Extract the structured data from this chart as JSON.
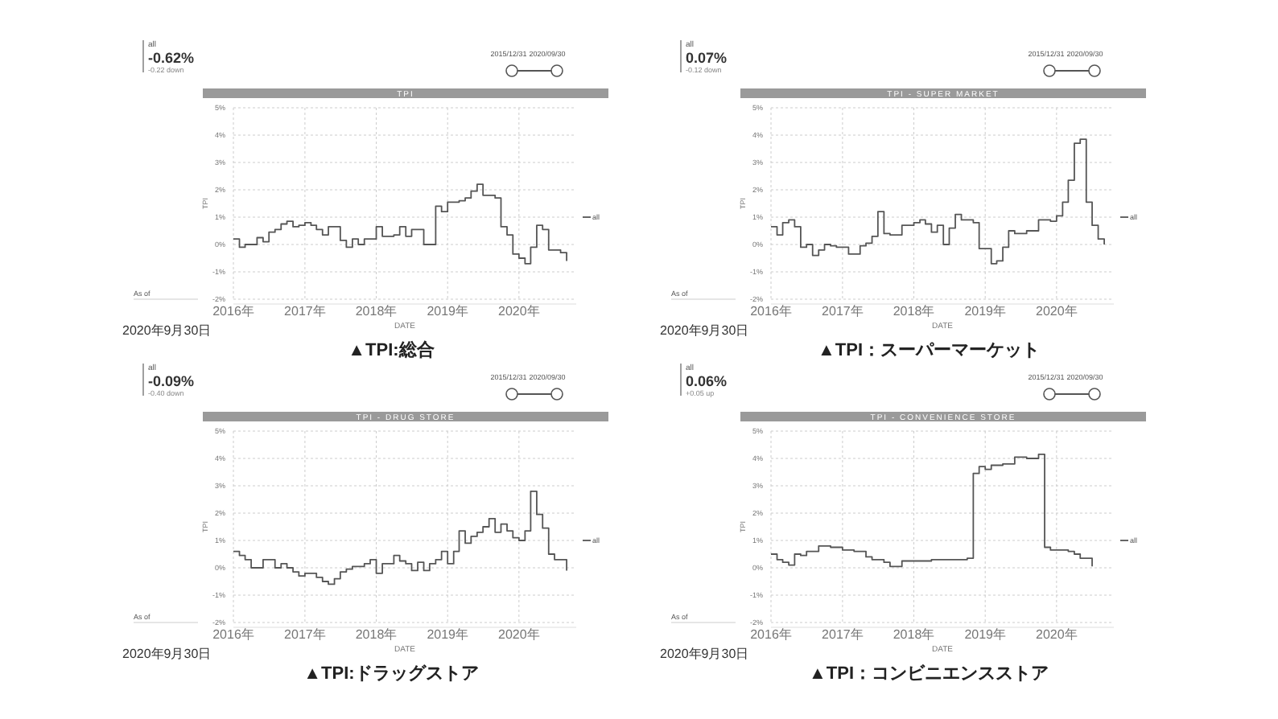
{
  "chart_data": [
    {
      "type": "step",
      "title": "TPI",
      "xlabel": "DATE",
      "ylabel": "TPI",
      "xlim": [
        "2016-01-01",
        "2020-10-20"
      ],
      "ylim": [
        -2,
        5
      ],
      "grid": true,
      "legend": "right",
      "xticks": [
        {
          "value": "2016",
          "label": "2016年"
        },
        {
          "value": "2017",
          "label": "2017年"
        },
        {
          "value": "2018",
          "label": "2018年"
        },
        {
          "value": "2019",
          "label": "2019年"
        },
        {
          "value": "2020",
          "label": "2020年"
        }
      ],
      "yticks": [
        {
          "value": -2,
          "label": "-2%"
        },
        {
          "value": -1,
          "label": "-1%"
        },
        {
          "value": 0,
          "label": "0%"
        },
        {
          "value": 1,
          "label": "1%"
        },
        {
          "value": 2,
          "label": "2%"
        },
        {
          "value": 3,
          "label": "3%"
        },
        {
          "value": 4,
          "label": "4%"
        },
        {
          "value": 5,
          "label": "5%"
        }
      ],
      "annotations": [
        "▲TPI:総合",
        "all",
        "-0.62%",
        "-0.22 down",
        "2015/12/31",
        "2020/09/30",
        "As of",
        "2020年9月30日"
      ],
      "series": [
        {
          "name": "all",
          "color": "#555555",
          "x": [
            "2016-01",
            "2016-02",
            "2016-03",
            "2016-05",
            "2016-06",
            "2016-07",
            "2016-08",
            "2016-09",
            "2016-10",
            "2016-11",
            "2016-12",
            "2017-01",
            "2017-02",
            "2017-03",
            "2017-04",
            "2017-05",
            "2017-07",
            "2017-08",
            "2017-09",
            "2017-10",
            "2017-11",
            "2018-01",
            "2018-02",
            "2018-04",
            "2018-05",
            "2018-06",
            "2018-07",
            "2018-09",
            "2018-11",
            "2018-12",
            "2019-01",
            "2019-03",
            "2019-04",
            "2019-05",
            "2019-06",
            "2019-07",
            "2019-09",
            "2019-10",
            "2019-11",
            "2019-12",
            "2020-01",
            "2020-02",
            "2020-03",
            "2020-04",
            "2020-05",
            "2020-06",
            "2020-08",
            "2020-09"
          ],
          "values": [
            0.2,
            -0.1,
            0.0,
            0.25,
            0.1,
            0.45,
            0.55,
            0.75,
            0.85,
            0.65,
            0.7,
            0.8,
            0.7,
            0.55,
            0.35,
            0.65,
            0.15,
            -0.1,
            0.2,
            0.0,
            0.2,
            0.65,
            0.3,
            0.35,
            0.65,
            0.3,
            0.55,
            0.0,
            1.4,
            1.2,
            1.55,
            1.6,
            1.7,
            1.95,
            2.2,
            1.8,
            1.7,
            0.65,
            0.35,
            -0.35,
            -0.5,
            -0.7,
            -0.1,
            0.7,
            0.55,
            -0.2,
            -0.3,
            -0.6
          ]
        }
      ]
    },
    {
      "type": "step",
      "title": "TPI - SUPER MARKET",
      "xlabel": "DATE",
      "ylabel": "TPI",
      "xlim": [
        "2016-01-01",
        "2020-10-20"
      ],
      "ylim": [
        -2,
        5
      ],
      "grid": true,
      "legend": "right",
      "xticks": [
        {
          "value": "2016",
          "label": "2016年"
        },
        {
          "value": "2017",
          "label": "2017年"
        },
        {
          "value": "2018",
          "label": "2018年"
        },
        {
          "value": "2019",
          "label": "2019年"
        },
        {
          "value": "2020",
          "label": "2020年"
        }
      ],
      "yticks": [
        {
          "value": -2,
          "label": "-2%"
        },
        {
          "value": -1,
          "label": "-1%"
        },
        {
          "value": 0,
          "label": "0%"
        },
        {
          "value": 1,
          "label": "1%"
        },
        {
          "value": 2,
          "label": "2%"
        },
        {
          "value": 3,
          "label": "3%"
        },
        {
          "value": 4,
          "label": "4%"
        },
        {
          "value": 5,
          "label": "5%"
        }
      ],
      "annotations": [
        "▲TPI：スーパーマーケット",
        "all",
        "0.07%",
        "-0.12 down",
        "2015/12/31",
        "2020/09/30",
        "As of",
        "2020年9月30日"
      ],
      "series": [
        {
          "name": "all",
          "color": "#555555",
          "x": [
            "2016-01",
            "2016-02",
            "2016-03",
            "2016-04",
            "2016-05",
            "2016-06",
            "2016-07",
            "2016-08",
            "2016-09",
            "2016-10",
            "2016-11",
            "2016-12",
            "2017-02",
            "2017-04",
            "2017-05",
            "2017-06",
            "2017-07",
            "2017-08",
            "2017-09",
            "2017-11",
            "2018-01",
            "2018-02",
            "2018-03",
            "2018-04",
            "2018-05",
            "2018-06",
            "2018-07",
            "2018-08",
            "2018-09",
            "2018-11",
            "2018-12",
            "2019-02",
            "2019-03",
            "2019-04",
            "2019-05",
            "2019-06",
            "2019-08",
            "2019-10",
            "2019-12",
            "2020-01",
            "2020-02",
            "2020-03",
            "2020-04",
            "2020-05",
            "2020-06",
            "2020-07",
            "2020-08",
            "2020-09"
          ],
          "values": [
            0.65,
            0.35,
            0.8,
            0.9,
            0.65,
            -0.1,
            0.0,
            -0.4,
            -0.2,
            0.0,
            -0.05,
            -0.1,
            -0.35,
            -0.05,
            0.05,
            0.3,
            1.2,
            0.4,
            0.35,
            0.7,
            0.8,
            0.9,
            0.75,
            0.45,
            0.7,
            0.0,
            0.6,
            1.1,
            0.9,
            0.8,
            -0.15,
            -0.7,
            -0.6,
            -0.1,
            0.5,
            0.4,
            0.5,
            0.9,
            0.85,
            1.05,
            1.55,
            2.35,
            3.7,
            3.85,
            1.55,
            0.7,
            0.2,
            0.0
          ]
        }
      ]
    },
    {
      "type": "step",
      "title": "TPI - DRUG STORE",
      "xlabel": "DATE",
      "ylabel": "TPI",
      "xlim": [
        "2016-01-01",
        "2020-10-20"
      ],
      "ylim": [
        -2,
        5
      ],
      "grid": true,
      "legend": "right",
      "xticks": [
        {
          "value": "2016",
          "label": "2016年"
        },
        {
          "value": "2017",
          "label": "2017年"
        },
        {
          "value": "2018",
          "label": "2018年"
        },
        {
          "value": "2019",
          "label": "2019年"
        },
        {
          "value": "2020",
          "label": "2020年"
        }
      ],
      "yticks": [
        {
          "value": -2,
          "label": "-2%"
        },
        {
          "value": -1,
          "label": "-1%"
        },
        {
          "value": 0,
          "label": "0%"
        },
        {
          "value": 1,
          "label": "1%"
        },
        {
          "value": 2,
          "label": "2%"
        },
        {
          "value": 3,
          "label": "3%"
        },
        {
          "value": 4,
          "label": "4%"
        },
        {
          "value": 5,
          "label": "5%"
        }
      ],
      "annotations": [
        "▲TPI:ドラッグストア",
        "all",
        "-0.09%",
        "-0.40 down",
        "2015/12/31",
        "2020/09/30",
        "As of",
        "2020年9月30日"
      ],
      "series": [
        {
          "name": "all",
          "color": "#555555",
          "x": [
            "2016-01",
            "2016-02",
            "2016-03",
            "2016-04",
            "2016-06",
            "2016-08",
            "2016-09",
            "2016-10",
            "2016-11",
            "2016-12",
            "2017-01",
            "2017-03",
            "2017-04",
            "2017-05",
            "2017-06",
            "2017-07",
            "2017-08",
            "2017-09",
            "2017-11",
            "2017-12",
            "2018-01",
            "2018-02",
            "2018-04",
            "2018-05",
            "2018-06",
            "2018-07",
            "2018-08",
            "2018-09",
            "2018-10",
            "2018-11",
            "2018-12",
            "2019-01",
            "2019-02",
            "2019-03",
            "2019-04",
            "2019-05",
            "2019-06",
            "2019-07",
            "2019-08",
            "2019-09",
            "2019-10",
            "2019-11",
            "2019-12",
            "2020-01",
            "2020-02",
            "2020-03",
            "2020-04",
            "2020-05",
            "2020-06",
            "2020-07",
            "2020-09"
          ],
          "values": [
            0.6,
            0.45,
            0.3,
            0.0,
            0.3,
            0.0,
            0.15,
            0.0,
            -0.15,
            -0.3,
            -0.2,
            -0.35,
            -0.5,
            -0.6,
            -0.4,
            -0.15,
            -0.05,
            0.05,
            0.15,
            0.3,
            -0.2,
            0.15,
            0.45,
            0.25,
            0.15,
            -0.1,
            0.2,
            -0.1,
            0.15,
            0.3,
            0.6,
            0.15,
            0.6,
            1.35,
            0.9,
            1.15,
            1.3,
            1.5,
            1.8,
            1.3,
            1.6,
            1.35,
            1.1,
            1.0,
            1.35,
            2.8,
            1.95,
            1.45,
            0.5,
            0.3,
            -0.1
          ]
        }
      ]
    },
    {
      "type": "step",
      "title": "TPI - CONVENIENCE STORE",
      "xlabel": "DATE",
      "ylabel": "TPI",
      "xlim": [
        "2016-01-01",
        "2020-10-20"
      ],
      "ylim": [
        -2,
        5
      ],
      "grid": true,
      "legend": "right",
      "xticks": [
        {
          "value": "2016",
          "label": "2016年"
        },
        {
          "value": "2017",
          "label": "2017年"
        },
        {
          "value": "2018",
          "label": "2018年"
        },
        {
          "value": "2019",
          "label": "2019年"
        },
        {
          "value": "2020",
          "label": "2020年"
        }
      ],
      "yticks": [
        {
          "value": -2,
          "label": "-2%"
        },
        {
          "value": -1,
          "label": "-1%"
        },
        {
          "value": 0,
          "label": "0%"
        },
        {
          "value": 1,
          "label": "1%"
        },
        {
          "value": 2,
          "label": "2%"
        },
        {
          "value": 3,
          "label": "3%"
        },
        {
          "value": 4,
          "label": "4%"
        },
        {
          "value": 5,
          "label": "5%"
        }
      ],
      "annotations": [
        "▲TPI：コンビニエンスストア",
        "all",
        "0.06%",
        "+0.05 up",
        "2015/12/31",
        "2020/09/30",
        "As of",
        "2020年9月30日"
      ],
      "series": [
        {
          "name": "all",
          "color": "#555555",
          "x": [
            "2016-01",
            "2016-02",
            "2016-03",
            "2016-04",
            "2016-05",
            "2016-06",
            "2016-07",
            "2016-09",
            "2016-11",
            "2017-01",
            "2017-03",
            "2017-05",
            "2017-06",
            "2017-08",
            "2017-09",
            "2017-11",
            "2018-04",
            "2018-10",
            "2018-11",
            "2018-12",
            "2019-01",
            "2019-02",
            "2019-04",
            "2019-06",
            "2019-08",
            "2019-10",
            "2019-11",
            "2019-12",
            "2020-03",
            "2020-04",
            "2020-05",
            "2020-07"
          ],
          "values": [
            0.5,
            0.3,
            0.2,
            0.1,
            0.5,
            0.45,
            0.6,
            0.8,
            0.75,
            0.65,
            0.6,
            0.4,
            0.3,
            0.2,
            0.05,
            0.25,
            0.3,
            0.35,
            3.45,
            3.7,
            3.6,
            3.75,
            3.8,
            4.05,
            4.0,
            4.15,
            0.75,
            0.65,
            0.6,
            0.5,
            0.35,
            0.05
          ]
        }
      ]
    }
  ]
}
